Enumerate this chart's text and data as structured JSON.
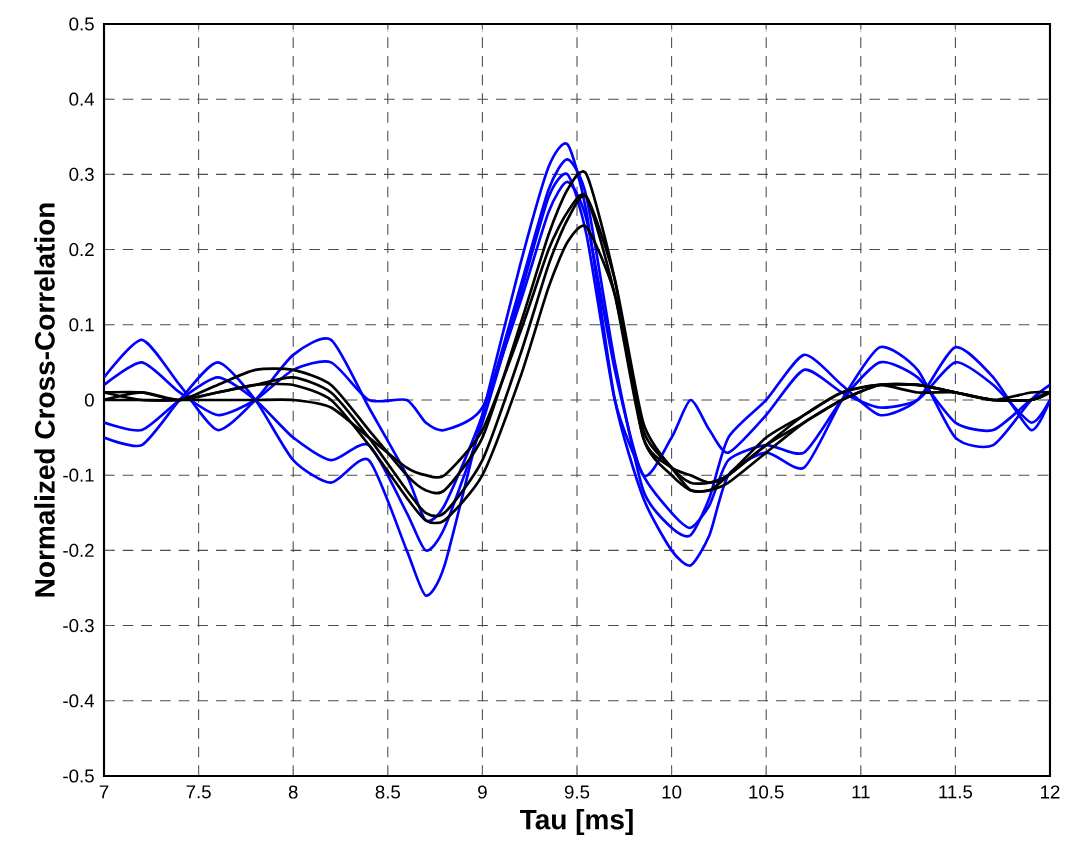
{
  "chart_data": {
    "type": "line",
    "xlabel": "Tau [ms]",
    "ylabel": "Normalized Cross-Correlation",
    "x": [
      7.0,
      7.2,
      7.4,
      7.6,
      7.8,
      8.0,
      8.2,
      8.4,
      8.6,
      8.7,
      8.8,
      9.0,
      9.2,
      9.35,
      9.45,
      9.55,
      9.7,
      9.85,
      10.0,
      10.1,
      10.2,
      10.3,
      10.5,
      10.7,
      10.9,
      11.1,
      11.3,
      11.5,
      11.7,
      11.9,
      12.0
    ],
    "series": [
      {
        "color": "#0000ff",
        "values": [
          -0.05,
          -0.06,
          0.0,
          0.05,
          0.0,
          -0.08,
          -0.11,
          -0.08,
          -0.2,
          -0.26,
          -0.22,
          -0.02,
          0.18,
          0.31,
          0.34,
          0.25,
          0.0,
          -0.13,
          -0.2,
          -0.22,
          -0.18,
          -0.1,
          -0.07,
          -0.09,
          0.0,
          0.07,
          0.04,
          -0.05,
          -0.06,
          0.0,
          0.02
        ]
      },
      {
        "color": "#0000ff",
        "values": [
          0.03,
          0.08,
          0.02,
          -0.04,
          0.0,
          0.06,
          0.08,
          -0.01,
          -0.1,
          -0.16,
          -0.14,
          -0.02,
          0.15,
          0.28,
          0.32,
          0.27,
          0.05,
          -0.12,
          -0.17,
          -0.18,
          -0.13,
          -0.05,
          0.0,
          0.06,
          0.02,
          -0.02,
          0.0,
          0.07,
          0.03,
          -0.04,
          0.0
        ]
      },
      {
        "color": "#0000ff",
        "values": [
          -0.03,
          -0.04,
          0.0,
          0.03,
          0.0,
          -0.05,
          -0.08,
          -0.06,
          -0.15,
          -0.2,
          -0.17,
          -0.03,
          0.14,
          0.27,
          0.3,
          0.22,
          0.0,
          -0.1,
          -0.15,
          -0.17,
          -0.14,
          -0.08,
          -0.06,
          -0.07,
          0.0,
          0.05,
          0.03,
          -0.03,
          -0.04,
          0.0,
          0.01
        ]
      },
      {
        "color": "#0000ff",
        "values": [
          0.02,
          0.05,
          0.01,
          -0.02,
          0.0,
          0.04,
          0.05,
          0.0,
          0.0,
          -0.03,
          -0.04,
          -0.01,
          0.13,
          0.25,
          0.29,
          0.24,
          0.04,
          -0.1,
          -0.05,
          0.0,
          -0.04,
          -0.07,
          -0.02,
          0.04,
          0.01,
          -0.01,
          0.0,
          0.05,
          0.02,
          -0.03,
          0.0
        ]
      },
      {
        "color": "#000000",
        "values": [
          0.01,
          0.01,
          0.0,
          0.02,
          0.04,
          0.04,
          0.02,
          -0.04,
          -0.1,
          -0.12,
          -0.12,
          -0.05,
          0.1,
          0.22,
          0.28,
          0.3,
          0.16,
          -0.05,
          -0.1,
          -0.12,
          -0.12,
          -0.1,
          -0.05,
          -0.02,
          0.01,
          0.02,
          0.02,
          0.01,
          0.0,
          0.01,
          0.01
        ]
      },
      {
        "color": "#000000",
        "values": [
          0.0,
          0.0,
          0.0,
          0.01,
          0.02,
          0.03,
          0.01,
          -0.05,
          -0.12,
          -0.15,
          -0.15,
          -0.08,
          0.06,
          0.18,
          0.24,
          0.27,
          0.16,
          -0.03,
          -0.09,
          -0.11,
          -0.11,
          -0.1,
          -0.06,
          -0.03,
          0.0,
          0.02,
          0.02,
          0.01,
          0.0,
          0.0,
          0.01
        ]
      },
      {
        "color": "#000000",
        "values": [
          0.01,
          0.0,
          0.0,
          0.0,
          0.0,
          0.0,
          -0.01,
          -0.05,
          -0.09,
          -0.1,
          -0.1,
          -0.04,
          0.09,
          0.2,
          0.25,
          0.27,
          0.14,
          -0.05,
          -0.09,
          -0.1,
          -0.11,
          -0.1,
          -0.06,
          -0.02,
          0.01,
          0.02,
          0.01,
          0.01,
          0.0,
          0.0,
          0.01
        ]
      },
      {
        "color": "#000000",
        "values": [
          0.0,
          0.01,
          0.0,
          0.01,
          0.02,
          0.02,
          0.0,
          -0.06,
          -0.13,
          -0.16,
          -0.16,
          -0.1,
          0.03,
          0.15,
          0.21,
          0.23,
          0.14,
          -0.04,
          -0.09,
          -0.12,
          -0.12,
          -0.11,
          -0.07,
          -0.03,
          0.0,
          0.02,
          0.02,
          0.01,
          0.0,
          0.0,
          0.01
        ]
      }
    ],
    "xlim": [
      7,
      12
    ],
    "xticks": [
      7,
      7.5,
      8,
      8.5,
      9,
      9.5,
      10,
      10.5,
      11,
      11.5,
      12
    ],
    "ylim": [
      -0.5,
      0.5
    ],
    "yticks": [
      -0.5,
      -0.4,
      -0.3,
      -0.2,
      -0.1,
      0,
      0.1,
      0.2,
      0.3,
      0.4,
      0.5
    ],
    "grid": true,
    "marker": "none",
    "line_style": "solid"
  }
}
